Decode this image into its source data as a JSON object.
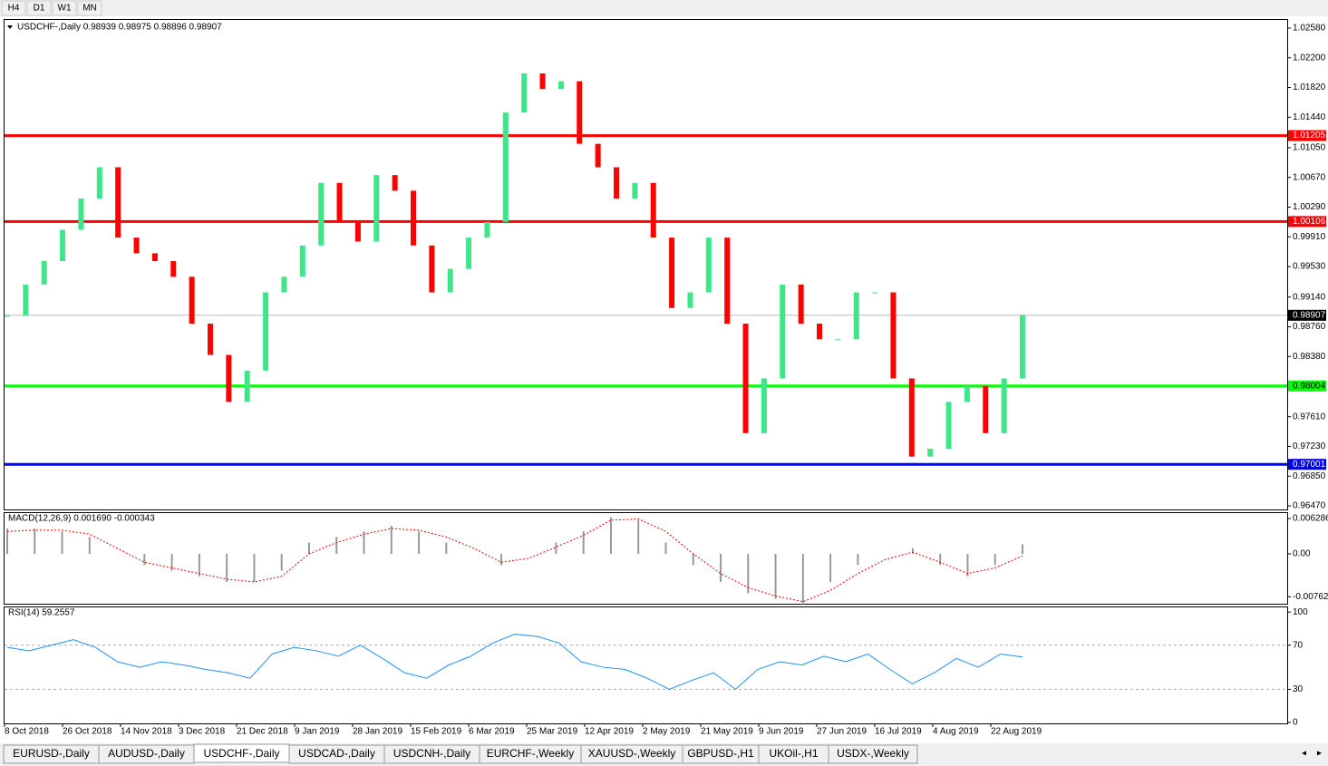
{
  "timeframes": [
    "H4",
    "D1",
    "W1",
    "MN"
  ],
  "header": "USDCHF-,Daily  0.98939 0.98975 0.98896 0.98907",
  "chart_data": [
    {
      "type": "candlestick",
      "up_color": "#3ee68a",
      "down_color": "#ff0000",
      "closes": [
        0.989,
        0.993,
        0.996,
        1.0,
        1.004,
        1.008,
        0.999,
        0.997,
        0.996,
        0.994,
        0.988,
        0.984,
        0.978,
        0.982,
        0.992,
        0.994,
        0.998,
        1.006,
        1.001,
        0.9985,
        1.007,
        1.005,
        0.998,
        0.992,
        0.995,
        0.999,
        1.001,
        1.015,
        1.02,
        1.018,
        1.019,
        1.011,
        1.008,
        1.004,
        1.006,
        0.999,
        0.99,
        0.992,
        0.999,
        0.988,
        0.974,
        0.981,
        0.993,
        0.988,
        0.986,
        0.986,
        0.992,
        0.992,
        0.981,
        0.971,
        0.972,
        0.978,
        0.98,
        0.974,
        0.981,
        0.98907
      ],
      "ylim": [
        0.96424,
        1.02684
      ],
      "yticks": [
        {
          "value": 1.0258,
          "label": "1.02580"
        },
        {
          "value": 1.022,
          "label": "1.02200"
        },
        {
          "value": 1.0182,
          "label": "1.01820"
        },
        {
          "value": 1.0144,
          "label": "1.01440"
        },
        {
          "value": 1.0105,
          "label": "1.01050"
        },
        {
          "value": 1.0067,
          "label": "1.00670"
        },
        {
          "value": 1.0029,
          "label": "1.00290"
        },
        {
          "value": 0.9991,
          "label": "0.99910"
        },
        {
          "value": 0.9953,
          "label": "0.99530"
        },
        {
          "value": 0.9914,
          "label": "0.99140"
        },
        {
          "value": 0.9876,
          "label": "0.98760"
        },
        {
          "value": 0.9838,
          "label": "0.98380"
        },
        {
          "value": 0.9761,
          "label": "0.97610"
        },
        {
          "value": 0.9723,
          "label": "0.97230"
        },
        {
          "value": 0.9685,
          "label": "0.96850"
        },
        {
          "value": 0.9647,
          "label": "0.96470"
        }
      ],
      "levels": [
        {
          "value": 1.01205,
          "color": "#ff0000"
        },
        {
          "value": 1.00106,
          "color": "#ff0000"
        },
        {
          "value": 0.98004,
          "color": "#00ff00"
        },
        {
          "value": 0.97001,
          "color": "#0000ff"
        }
      ],
      "current": 0.98907
    },
    {
      "type": "macd",
      "title": "MACD(12,26,9) 0.001690 -0.000343",
      "histogram": [
        0.0045,
        0.0045,
        0.004,
        0.003,
        0.0,
        -0.002,
        -0.003,
        -0.004,
        -0.005,
        -0.005,
        -0.003,
        0.002,
        0.003,
        0.004,
        0.005,
        0.004,
        0.002,
        0.0,
        -0.002,
        0.0,
        0.002,
        0.004,
        0.0065,
        0.006,
        0.002,
        -0.002,
        -0.005,
        -0.007,
        -0.008,
        -0.009,
        -0.005,
        -0.002,
        0.0,
        0.001,
        -0.002,
        -0.004,
        -0.002,
        0.00169
      ],
      "signal": [
        0.004,
        0.0042,
        0.0042,
        0.0035,
        0.001,
        -0.0015,
        -0.0025,
        -0.0035,
        -0.0045,
        -0.005,
        -0.004,
        0.0,
        0.002,
        0.0035,
        0.0045,
        0.0042,
        0.003,
        0.001,
        -0.0015,
        -0.0008,
        0.0012,
        0.0033,
        0.006,
        0.0062,
        0.004,
        0.0,
        -0.0035,
        -0.006,
        -0.0075,
        -0.0085,
        -0.0065,
        -0.0035,
        -0.001,
        0.0003,
        -0.0015,
        -0.0035,
        -0.0025,
        -0.000343
      ],
      "ylim": [
        -0.00887,
        0.00725
      ],
      "yticks": [
        0.006286,
        {
          "value": 0,
          "label": "0.00"
        },
        -0.00762
      ]
    },
    {
      "type": "rsi",
      "title": "RSI(14) 59.2557",
      "values": [
        68,
        65,
        70,
        75,
        68,
        55,
        50,
        55,
        52,
        48,
        45,
        40,
        62,
        68,
        65,
        60,
        70,
        58,
        45,
        40,
        52,
        60,
        72,
        80,
        78,
        72,
        55,
        50,
        48,
        40,
        30,
        38,
        45,
        30,
        48,
        55,
        52,
        60,
        55,
        62,
        48,
        35,
        45,
        58,
        50,
        62,
        59.2557
      ],
      "ylim": [
        -0.9,
        104.3
      ],
      "yticks": [
        100,
        70,
        30,
        0
      ],
      "levels": [
        70,
        30
      ]
    }
  ],
  "date_labels": [
    "8 Oct 2018",
    "26 Oct 2018",
    "14 Nov 2018",
    "3 Dec 2018",
    "21 Dec 2018",
    "9 Jan 2019",
    "28 Jan 2019",
    "15 Feb 2019",
    "6 Mar 2019",
    "25 Mar 2019",
    "12 Apr 2019",
    "2 May 2019",
    "21 May 2019",
    "9 Jun 2019",
    "27 Jun 2019",
    "16 Jul 2019",
    "4 Aug 2019",
    "22 Aug 2019"
  ],
  "tabs": [
    "EURUSD-,Daily",
    "AUDUSD-,Daily",
    "USDCHF-,Daily",
    "USDCAD-,Daily",
    "USDCNH-,Daily",
    "EURCHF-,Weekly",
    "XAUUSD-,Weekly",
    "GBPUSD-,H1",
    "UKOil-,H1",
    "USDX-,Weekly"
  ],
  "active_tab": 2
}
